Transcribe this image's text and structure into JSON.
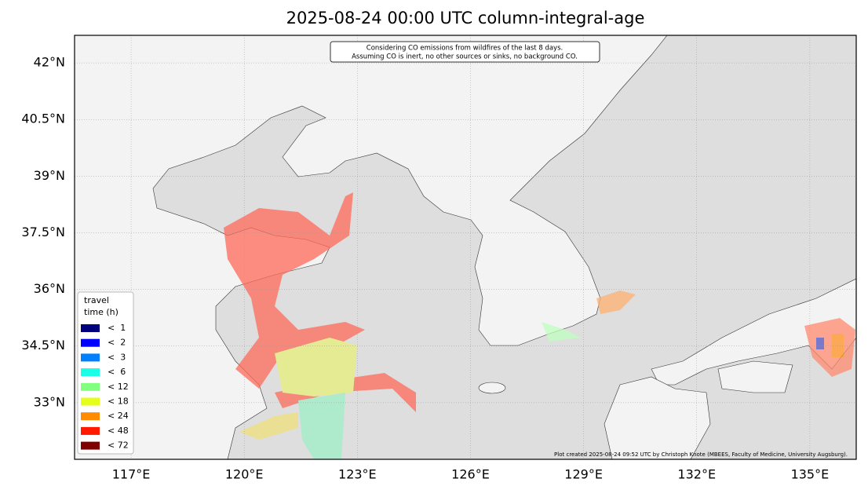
{
  "chart_data": {
    "type": "map",
    "title": "2025-08-24 00:00 UTC column-integral-age",
    "annotation": [
      "Considering CO emissions from wildfires of the last 8 days.",
      "Assuming CO is inert, no other sources or sinks, no background CO."
    ],
    "credit": "Plot created 2025-08-24 09:52 UTC by Christoph Knote (MBEES, Faculty of Medicine, University Augsburg).",
    "xlim": [
      115.5,
      136.23
    ],
    "ylim": [
      31.5,
      42.73
    ],
    "xticks": [
      {
        "value": 117,
        "label": "117°E"
      },
      {
        "value": 120,
        "label": "120°E"
      },
      {
        "value": 123,
        "label": "123°E"
      },
      {
        "value": 126,
        "label": "126°E"
      },
      {
        "value": 129,
        "label": "129°E"
      },
      {
        "value": 132,
        "label": "132°E"
      },
      {
        "value": 135,
        "label": "135°E"
      }
    ],
    "yticks": [
      {
        "value": 33,
        "label": "33°N"
      },
      {
        "value": 34.5,
        "label": "34.5°N"
      },
      {
        "value": 36,
        "label": "36°N"
      },
      {
        "value": 37.5,
        "label": "37.5°N"
      },
      {
        "value": 39,
        "label": "39°N"
      },
      {
        "value": 40.5,
        "label": "40.5°N"
      },
      {
        "value": 42,
        "label": "42°N"
      }
    ],
    "grid": true,
    "legend": {
      "title": [
        "travel",
        "time (h)"
      ],
      "items": [
        {
          "label": "<  1",
          "color": "#00007f"
        },
        {
          "label": "<  2",
          "color": "#0000ff"
        },
        {
          "label": "<  3",
          "color": "#0080ff"
        },
        {
          "label": "<  6",
          "color": "#1affe6"
        },
        {
          "label": "< 12",
          "color": "#80ff80"
        },
        {
          "label": "< 18",
          "color": "#e6ff1a"
        },
        {
          "label": "< 24",
          "color": "#ff8c00"
        },
        {
          "label": "< 48",
          "color": "#ff1a00"
        },
        {
          "label": "< 72",
          "color": "#800000"
        }
      ]
    }
  }
}
